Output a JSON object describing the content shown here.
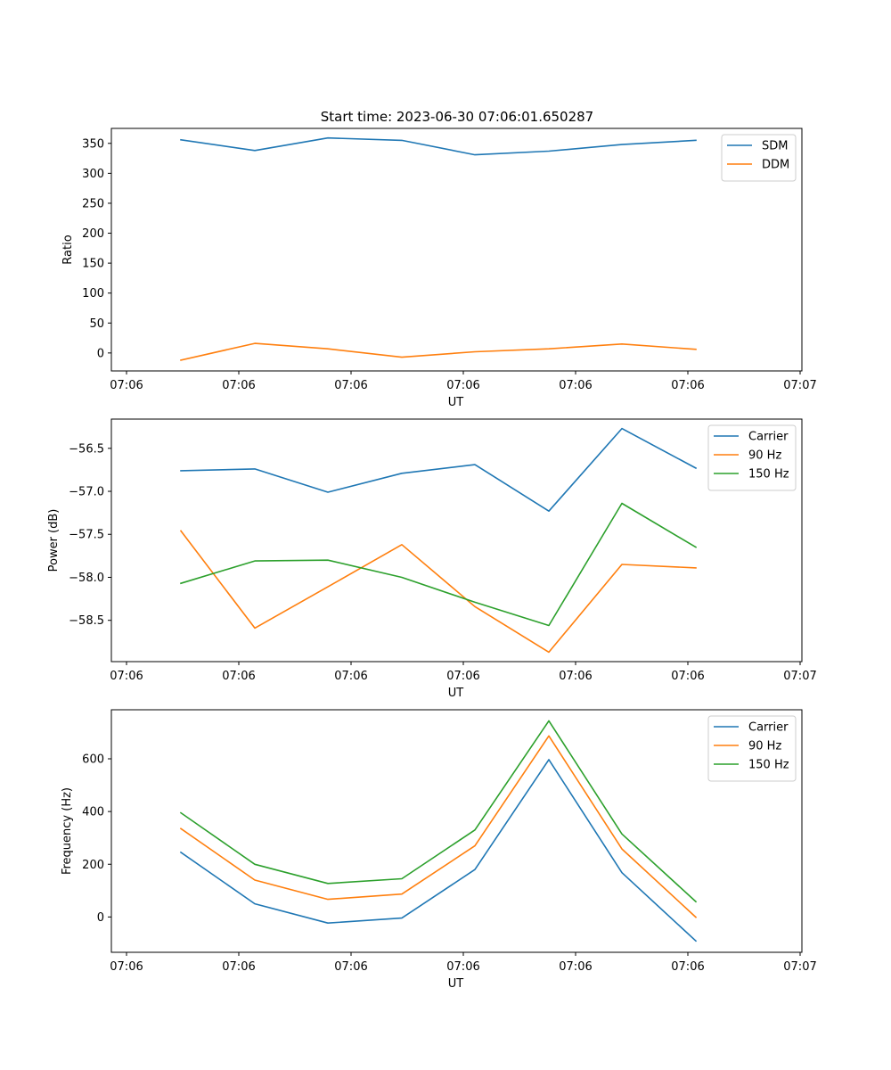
{
  "figure": {
    "title": "Start time: 2023-06-30 07:06:01.650287"
  },
  "chart_data": [
    {
      "type": "line",
      "xlabel": "UT",
      "ylabel": "Ratio",
      "x_tick_labels": [
        "07:06",
        "07:06",
        "07:06",
        "07:06",
        "07:06",
        "07:06",
        "07:07"
      ],
      "y_ticks": [
        0,
        50,
        100,
        150,
        200,
        250,
        300,
        350
      ],
      "ylim": [
        -30,
        375
      ],
      "grid": false,
      "legend_position": "top-right",
      "series": [
        {
          "name": "SDM",
          "color": "#1f77b4",
          "values": [
            356,
            338,
            359,
            355,
            331,
            337,
            348,
            355
          ]
        },
        {
          "name": "DDM",
          "color": "#ff7f0e",
          "values": [
            -12,
            16,
            7,
            -7,
            2,
            7,
            15,
            6
          ]
        }
      ]
    },
    {
      "type": "line",
      "xlabel": "UT",
      "ylabel": "Power (dB)",
      "x_tick_labels": [
        "07:06",
        "07:06",
        "07:06",
        "07:06",
        "07:06",
        "07:06",
        "07:07"
      ],
      "y_ticks": [
        -58.5,
        -58.0,
        -57.5,
        -57.0,
        -56.5
      ],
      "y_tick_labels": [
        "−58.5",
        "−58.0",
        "−57.5",
        "−57.0",
        "−56.5"
      ],
      "ylim": [
        -58.98,
        -56.16
      ],
      "grid": false,
      "legend_position": "top-right",
      "series": [
        {
          "name": "Carrier",
          "color": "#1f77b4",
          "values": [
            -56.76,
            -56.74,
            -57.01,
            -56.79,
            -56.69,
            -57.23,
            -56.27,
            -56.73
          ]
        },
        {
          "name": "90 Hz",
          "color": "#ff7f0e",
          "values": [
            -57.46,
            -58.59,
            -58.11,
            -57.62,
            -58.34,
            -58.87,
            -57.85,
            -57.89
          ]
        },
        {
          "name": "150 Hz",
          "color": "#2ca02c",
          "values": [
            -58.07,
            -57.81,
            -57.8,
            -58.0,
            -58.29,
            -58.56,
            -57.14,
            -57.65
          ]
        }
      ]
    },
    {
      "type": "line",
      "xlabel": "UT",
      "ylabel": "Frequency (Hz)",
      "x_tick_labels": [
        "07:06",
        "07:06",
        "07:06",
        "07:06",
        "07:06",
        "07:06",
        "07:07"
      ],
      "y_ticks": [
        0,
        200,
        400,
        600
      ],
      "ylim": [
        -134,
        786
      ],
      "grid": false,
      "legend_position": "top-right",
      "series": [
        {
          "name": "Carrier",
          "color": "#1f77b4",
          "values": [
            245,
            50,
            -23,
            -4,
            180,
            597,
            168,
            -91
          ]
        },
        {
          "name": "90 Hz",
          "color": "#ff7f0e",
          "values": [
            335,
            140,
            67,
            87,
            270,
            687,
            258,
            -1
          ]
        },
        {
          "name": "150 Hz",
          "color": "#2ca02c",
          "values": [
            395,
            200,
            127,
            145,
            330,
            744,
            315,
            58
          ]
        }
      ]
    }
  ]
}
